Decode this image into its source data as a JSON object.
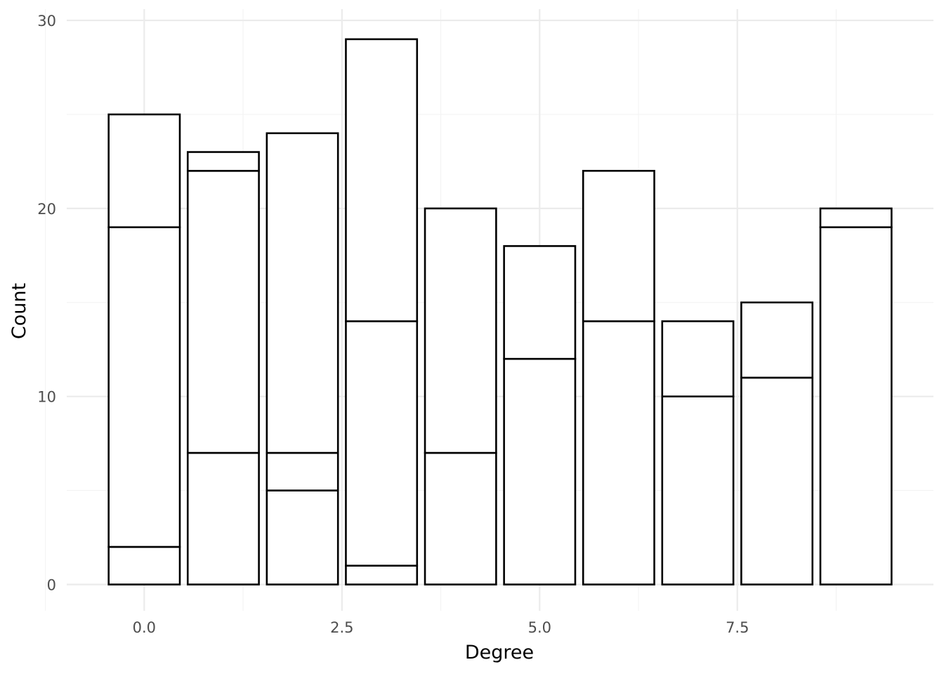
{
  "chart_data": {
    "type": "bar",
    "stacked": true,
    "x": [
      0,
      1,
      2,
      3,
      4,
      5,
      6,
      7,
      8,
      9
    ],
    "stacks": [
      [
        2,
        17,
        6
      ],
      [
        7,
        15,
        1
      ],
      [
        5,
        2,
        17
      ],
      [
        1,
        13,
        15
      ],
      [
        7,
        13
      ],
      [
        12,
        6
      ],
      [
        14,
        8
      ],
      [
        10,
        4
      ],
      [
        11,
        4
      ],
      [
        19,
        1
      ]
    ],
    "totals": [
      25,
      23,
      24,
      29,
      20,
      18,
      22,
      14,
      15,
      20
    ],
    "xlabel": "Degree",
    "ylabel": "Count",
    "xlim": [
      -0.98,
      9.98
    ],
    "ylim": [
      -1.4,
      30.6
    ],
    "xticks": [
      0.0,
      2.5,
      5.0,
      7.5
    ],
    "xtick_labels": [
      "0.0",
      "2.5",
      "5.0",
      "7.5"
    ],
    "yticks": [
      0,
      10,
      20,
      30
    ],
    "ytick_labels": [
      "0",
      "10",
      "20",
      "30"
    ],
    "bar_fill": "#ffffff",
    "bar_stroke": "#000000",
    "grid": true
  }
}
